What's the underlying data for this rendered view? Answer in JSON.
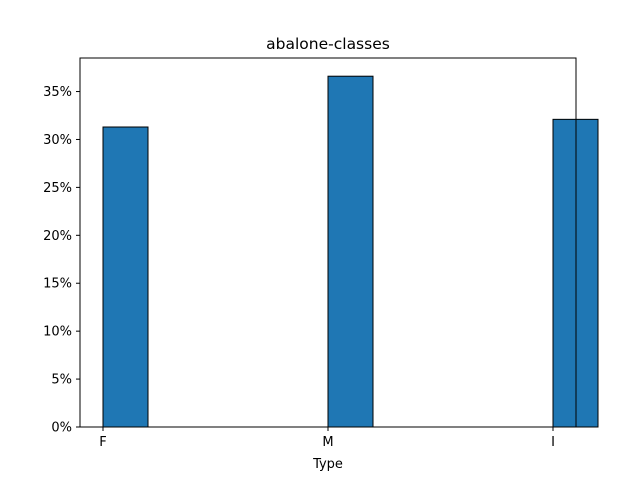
{
  "chart_data": {
    "type": "bar",
    "title": "abalone-classes",
    "xlabel": "Type",
    "ylabel": "",
    "categories": [
      "F",
      "M",
      "I"
    ],
    "values": [
      0.313,
      0.366,
      0.321
    ],
    "ylim": [
      0,
      0.385
    ],
    "yticks": [
      0,
      0.05,
      0.1,
      0.15,
      0.2,
      0.25,
      0.3,
      0.35
    ],
    "ytick_labels": [
      "0%",
      "5%",
      "10%",
      "15%",
      "20%",
      "25%",
      "30%",
      "35%"
    ],
    "grid": false,
    "bar_color": "#1f77b4",
    "edge_color": "#000000"
  }
}
